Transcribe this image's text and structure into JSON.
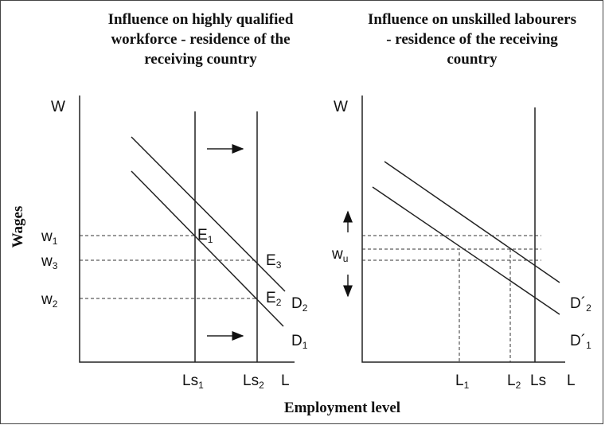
{
  "left": {
    "title": [
      "Influence on highly qualified",
      "workforce - residence of the",
      "receiving country"
    ],
    "y_axis": "W",
    "x_axis": "L",
    "wages": [
      {
        "text": "w",
        "sub": "1"
      },
      {
        "text": "w",
        "sub": "3"
      },
      {
        "text": "w",
        "sub": "2"
      }
    ],
    "points": [
      {
        "text": "E",
        "sub": "1"
      },
      {
        "text": "E",
        "sub": "3"
      },
      {
        "text": "E",
        "sub": "2"
      }
    ],
    "curves": [
      {
        "text": "D",
        "sub": "2"
      },
      {
        "text": "D",
        "sub": "1"
      }
    ],
    "supply": [
      {
        "text": "Ls",
        "sub": "1"
      },
      {
        "text": "Ls",
        "sub": "2"
      }
    ]
  },
  "right": {
    "title": [
      "Influence on unskilled labourers",
      "- residence of the receiving",
      "country"
    ],
    "y_axis": "W",
    "x_axis": "L",
    "wage": {
      "text": "w",
      "sub": "u"
    },
    "curves": [
      {
        "text": "D´",
        "sub": "2"
      },
      {
        "text": "D´",
        "sub": "1"
      }
    ],
    "levels": [
      {
        "text": "L",
        "sub": "1"
      },
      {
        "text": "L",
        "sub": "2"
      }
    ],
    "supply": "Ls"
  },
  "y_label": "Wages",
  "x_label": "Employment level"
}
